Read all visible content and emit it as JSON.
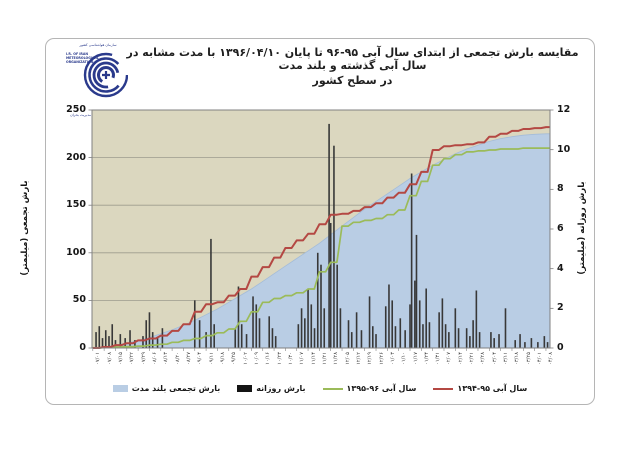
{
  "header": {
    "title_line1": "مقایسه بارش تجمعی از ابتدای سال آبی ۹۵-۹۶ تا پایان ۱۳۹۶/۰۴/۱۰ با مدت مشابه در سال آبی گذشته و بلند مدت",
    "title_line2": "در سطح کشور"
  },
  "logo": {
    "org_en": "I.R. OF IRAN METEOROLOGICAL ORGANIZATION",
    "org_fa_top": "سازمان هواشناسی کشور",
    "org_fa_bottom": "مرکز ملی خشکسالی و مدیریت بحران"
  },
  "colors": {
    "plot_bg": "#dbd7bf",
    "grid": "#9d9b8d",
    "area_fill": "#b9cde4",
    "area_edge": "#a4bcd8",
    "bar": "#383838",
    "line_green": "#9bbb59",
    "line_red": "#b44843",
    "axis": "#808080"
  },
  "chart_data": {
    "type": "combo (area + bar + line)",
    "title": "مقایسه بارش تجمعی از ابتدای سال آبی ۹۵-۹۶ تا پایان ۱۳۹۶/۰۴/۱۰ با مدت مشابه در سال آبی گذشته و بلند مدت در سطح کشور",
    "left_axis": {
      "label": "بارش تجمعی (میلیمتر)",
      "min": 0,
      "max": 250,
      "ticks": [
        0,
        50,
        100,
        150,
        200,
        250
      ]
    },
    "right_axis": {
      "label": "بارش روزانه (میلیمتر)",
      "min": 0,
      "max": 12,
      "ticks": [
        0,
        2,
        4,
        6,
        8,
        10,
        12
      ]
    },
    "grid": true,
    "legend_position": "bottom",
    "days_total": 283,
    "x_ticks": [
      "۰۷/۰۱",
      "۰۷/۰۸",
      "۰۷/۱۵",
      "۰۷/۲۲",
      "۰۷/۲۹",
      "۰۸/۰۶",
      "۰۸/۱۳",
      "۰۸/۲۰",
      "۰۸/۲۷",
      "۰۹/۰۴",
      "۰۹/۱۱",
      "۰۹/۱۸",
      "۰۹/۲۵",
      "۱۰/۰۲",
      "۱۰/۰۹",
      "۱۰/۱۶",
      "۱۰/۲۳",
      "۱۰/۳۰",
      "۱۱/۰۷",
      "۱۱/۱۴",
      "۱۱/۲۱",
      "۱۱/۲۸",
      "۱۲/۰۵",
      "۱۲/۱۲",
      "۱۲/۱۹",
      "۱۲/۲۶",
      "۰۱/۰۳",
      "۰۱/۱۰",
      "۰۱/۱۷",
      "۰۱/۲۴",
      "۰۱/۳۱",
      "۰۲/۰۷",
      "۰۲/۱۴",
      "۰۲/۲۱",
      "۰۲/۲۸",
      "۰۳/۰۴",
      "۰۳/۱۱",
      "۰۳/۱۸",
      "۰۳/۲۵",
      "۰۴/۰۱",
      "۰۴/۰۸"
    ],
    "series": [
      {
        "name": "بارش تجمعی بلند مدت",
        "type": "area",
        "axis": "left",
        "color": "#b9cde4",
        "values": [
          0,
          1,
          3,
          5,
          8,
          11,
          15,
          19,
          24,
          29,
          35,
          41,
          48,
          55,
          62,
          70,
          78,
          86,
          94,
          102,
          110,
          119,
          128,
          137,
          146,
          154,
          162,
          170,
          178,
          185,
          192,
          198,
          204,
          209,
          213,
          217,
          220,
          222,
          223.5,
          224.5,
          225
        ]
      },
      {
        "name": "بارش روزانه",
        "type": "bar",
        "axis": "right",
        "color": "#383838",
        "points": [
          [
            2,
            0.8
          ],
          [
            4,
            1.1
          ],
          [
            6,
            0.5
          ],
          [
            8,
            0.9
          ],
          [
            10,
            0.6
          ],
          [
            12,
            1.2
          ],
          [
            14,
            0.4
          ],
          [
            17,
            0.7
          ],
          [
            20,
            0.5
          ],
          [
            23,
            0.9
          ],
          [
            26,
            0.4
          ],
          [
            31,
            0.6
          ],
          [
            33,
            1.4
          ],
          [
            35,
            1.8
          ],
          [
            37,
            0.8
          ],
          [
            40,
            0.5
          ],
          [
            43,
            1.0
          ],
          [
            63,
            2.4
          ],
          [
            66,
            1.4
          ],
          [
            70,
            0.8
          ],
          [
            73,
            5.5
          ],
          [
            75,
            1.2
          ],
          [
            88,
            1.0
          ],
          [
            90,
            3.1
          ],
          [
            92,
            1.2
          ],
          [
            95,
            0.7
          ],
          [
            99,
            2.6
          ],
          [
            101,
            2.2
          ],
          [
            103,
            1.5
          ],
          [
            109,
            1.6
          ],
          [
            111,
            1.0
          ],
          [
            113,
            0.6
          ],
          [
            127,
            1.2
          ],
          [
            129,
            2.0
          ],
          [
            131,
            1.5
          ],
          [
            133,
            3.0
          ],
          [
            135,
            2.2
          ],
          [
            137,
            1.0
          ],
          [
            139,
            4.8
          ],
          [
            141,
            4.2
          ],
          [
            143,
            2.0
          ],
          [
            146,
            11.3
          ],
          [
            147,
            6.3
          ],
          [
            149,
            10.2
          ],
          [
            151,
            4.2
          ],
          [
            153,
            2.0
          ],
          [
            158,
            1.4
          ],
          [
            160,
            0.8
          ],
          [
            163,
            1.8
          ],
          [
            166,
            0.9
          ],
          [
            171,
            2.6
          ],
          [
            173,
            1.1
          ],
          [
            175,
            0.7
          ],
          [
            181,
            2.1
          ],
          [
            183,
            3.2
          ],
          [
            185,
            2.4
          ],
          [
            187,
            1.1
          ],
          [
            190,
            1.5
          ],
          [
            193,
            0.9
          ],
          [
            196,
            2.2
          ],
          [
            197,
            8.8
          ],
          [
            199,
            3.4
          ],
          [
            200,
            5.7
          ],
          [
            202,
            2.4
          ],
          [
            204,
            1.2
          ],
          [
            206,
            3.0
          ],
          [
            208,
            1.3
          ],
          [
            214,
            1.8
          ],
          [
            216,
            2.5
          ],
          [
            218,
            1.2
          ],
          [
            220,
            0.8
          ],
          [
            224,
            2.0
          ],
          [
            226,
            1.0
          ],
          [
            231,
            1.0
          ],
          [
            233,
            0.6
          ],
          [
            235,
            1.4
          ],
          [
            237,
            2.9
          ],
          [
            239,
            0.8
          ],
          [
            246,
            0.8
          ],
          [
            248,
            0.5
          ],
          [
            251,
            0.7
          ],
          [
            255,
            2.0
          ],
          [
            261,
            0.4
          ],
          [
            264,
            0.7
          ],
          [
            267,
            0.3
          ],
          [
            271,
            0.5
          ],
          [
            275,
            0.3
          ],
          [
            279,
            0.6
          ],
          [
            281,
            0.3
          ]
        ]
      },
      {
        "name": "سال آبی ۹۶-۱۳۹۵",
        "type": "line",
        "axis": "left",
        "color": "#9bbb59",
        "values": [
          0,
          0.5,
          1,
          1.5,
          2,
          3,
          4,
          6,
          8,
          10,
          13,
          16,
          20,
          28,
          38,
          48,
          52,
          55,
          58,
          62,
          80,
          90,
          128,
          132,
          134,
          136,
          140,
          145,
          160,
          175,
          192,
          199,
          203,
          206,
          207,
          208,
          209,
          209,
          210,
          210,
          210
        ]
      },
      {
        "name": "سال آبی ۹۵-۱۳۹۴",
        "type": "line",
        "axis": "left",
        "color": "#b44843",
        "values": [
          0,
          1,
          3,
          5,
          8,
          10,
          13,
          18,
          25,
          38,
          46,
          48,
          55,
          62,
          75,
          85,
          95,
          105,
          113,
          120,
          130,
          140,
          141,
          144,
          148,
          152,
          158,
          163,
          172,
          185,
          208,
          212,
          213,
          214,
          216,
          222,
          225,
          228,
          230,
          231,
          232
        ]
      }
    ]
  },
  "legend": {
    "items": [
      {
        "label": "سال آبی ۹۵-۱۳۹۴",
        "swatch": "line",
        "color": "#b44843"
      },
      {
        "label": "سال آبی ۹۶-۱۳۹۵",
        "swatch": "line",
        "color": "#9bbb59"
      },
      {
        "label": "بارش روزانه",
        "swatch": "rect",
        "color": "#141414"
      },
      {
        "label": "بارش تجمعی بلند مدت",
        "swatch": "rect",
        "color": "#b9cde4"
      }
    ]
  }
}
